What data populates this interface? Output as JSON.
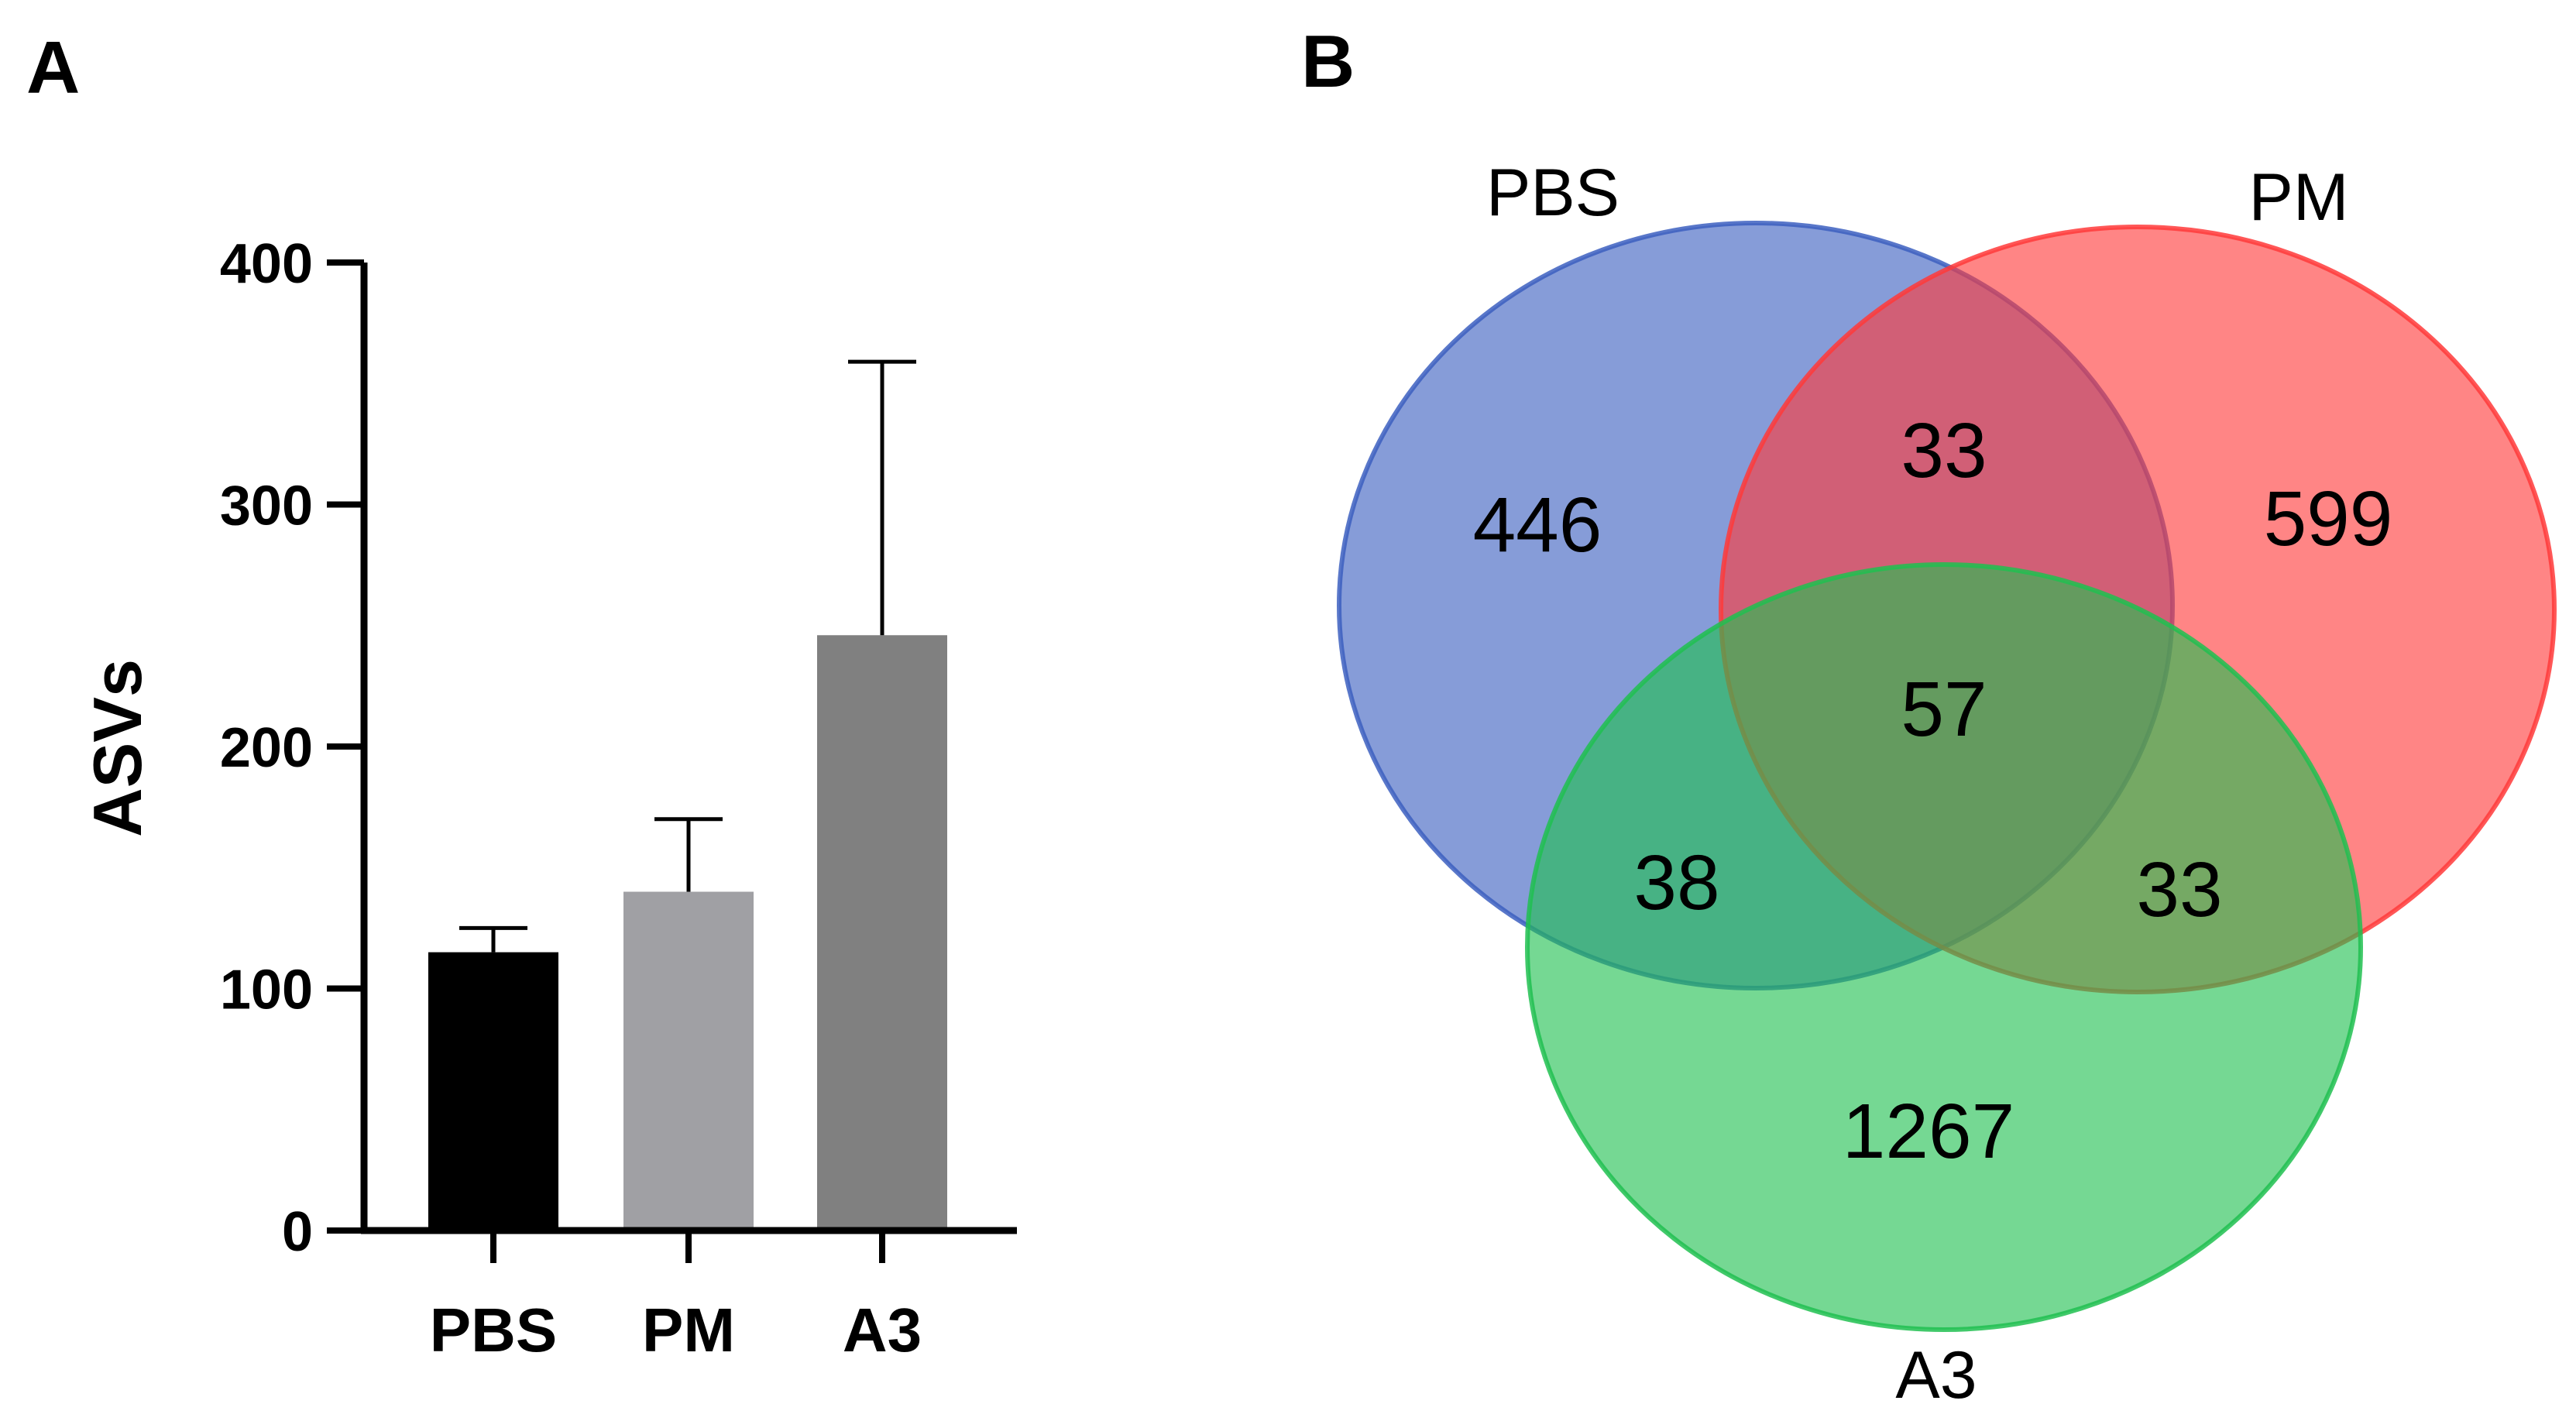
{
  "panels": {
    "a": "A",
    "b": "B"
  },
  "chart_data": [
    {
      "type": "bar",
      "categories": [
        "PBS",
        "PM",
        "A3"
      ],
      "values": [
        115,
        140,
        246
      ],
      "errors": [
        10,
        30,
        113
      ],
      "colors": [
        "#000000",
        "#a0a0a4",
        "#808080"
      ],
      "ylabel": "ASVs",
      "ylim": [
        0,
        400
      ],
      "yticks": [
        0,
        100,
        200,
        300,
        400
      ],
      "grid": false
    },
    {
      "type": "venn",
      "sets": [
        {
          "name": "PBS",
          "color": "#3c5fc0"
        },
        {
          "name": "PM",
          "color": "#ff3a3a"
        },
        {
          "name": "A3",
          "color": "#20c050"
        }
      ],
      "regions": {
        "PBS_only": 446,
        "PM_only": 599,
        "A3_only": 1267,
        "PBS_PM": 33,
        "PBS_A3": 38,
        "PM_A3": 33,
        "PBS_PM_A3": 57
      }
    }
  ]
}
